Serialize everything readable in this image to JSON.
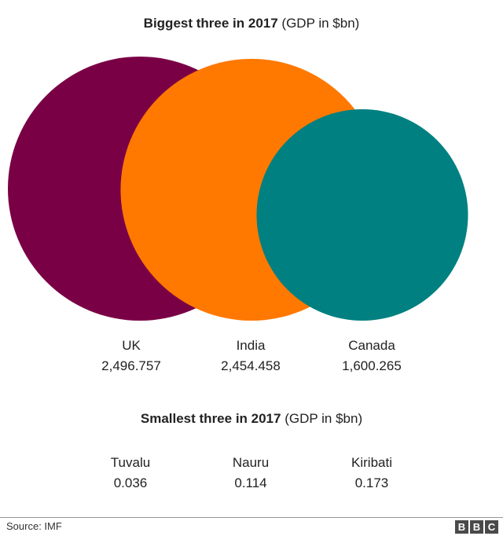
{
  "chart_data": [
    {
      "type": "bubble",
      "title": "Biggest three in 2017",
      "subtitle": "(GDP in $bn)",
      "categories": [
        "UK",
        "India",
        "Canada"
      ],
      "values": [
        2496.757,
        2454.458,
        1600.265
      ],
      "value_labels": [
        "2,496.757",
        "2,454.458",
        "1,600.265"
      ],
      "colors": [
        "#7a0045",
        "#ff7800",
        "#008080"
      ]
    },
    {
      "type": "table",
      "title": "Smallest three in 2017",
      "subtitle": "(GDP in $bn)",
      "categories": [
        "Tuvalu",
        "Nauru",
        "Kiribati"
      ],
      "values": [
        0.036,
        0.114,
        0.173
      ],
      "value_labels": [
        "0.036",
        "0.114",
        "0.173"
      ]
    }
  ],
  "footer": {
    "source": "Source: IMF",
    "logo_letters": [
      "B",
      "B",
      "C"
    ]
  }
}
